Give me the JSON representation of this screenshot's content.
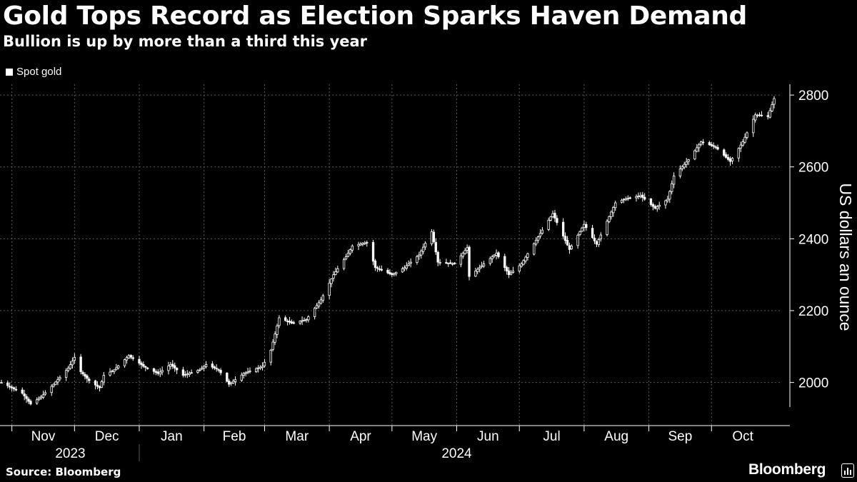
{
  "header": {
    "title": "Gold Tops Record as Election Sparks Haven Demand",
    "subtitle": "Bullion is up by more than a third this year"
  },
  "footer": {
    "source": "Source: Bloomberg",
    "brand": "Bloomberg"
  },
  "colors": {
    "background": "#000000",
    "series": "#ffffff",
    "grid": "#5a5a5a"
  },
  "chart_data": {
    "type": "candlestick",
    "title": "Gold Tops Record as Election Sparks Haven Demand",
    "subtitle": "Bullion is up by more than a third this year",
    "ylabel": "US dollars an ounce",
    "xlabel": "",
    "legend": [
      "Spot gold"
    ],
    "legend_position": "top-left",
    "grid": true,
    "y_axis_position": "right",
    "ylim": [
      1880,
      2830
    ],
    "yticks": [
      2000,
      2200,
      2400,
      2600,
      2800
    ],
    "x_months": [
      "Nov",
      "Dec",
      "Jan",
      "Feb",
      "Mar",
      "Apr",
      "May",
      "Jun",
      "Jul",
      "Aug",
      "Sep",
      "Oct"
    ],
    "x_years": [
      "2023",
      "2024"
    ],
    "x_range": [
      "2023-10-27",
      "2024-10-31"
    ],
    "series": [
      {
        "name": "Spot gold",
        "anchors": [
          [
            "2023-10-27",
            2000
          ],
          [
            "2023-11-01",
            1985
          ],
          [
            "2023-11-06",
            1970
          ],
          [
            "2023-11-10",
            1940
          ],
          [
            "2023-11-15",
            1960
          ],
          [
            "2023-11-21",
            1995
          ],
          [
            "2023-11-28",
            2040
          ],
          [
            "2023-12-01",
            2070
          ],
          [
            "2023-12-04",
            2030
          ],
          [
            "2023-12-08",
            2005
          ],
          [
            "2023-12-13",
            1985
          ],
          [
            "2023-12-15",
            2020
          ],
          [
            "2023-12-20",
            2035
          ],
          [
            "2023-12-27",
            2075
          ],
          [
            "2024-01-03",
            2045
          ],
          [
            "2024-01-10",
            2025
          ],
          [
            "2024-01-16",
            2050
          ],
          [
            "2024-01-22",
            2020
          ],
          [
            "2024-01-30",
            2035
          ],
          [
            "2024-02-02",
            2050
          ],
          [
            "2024-02-08",
            2035
          ],
          [
            "2024-02-13",
            1995
          ],
          [
            "2024-02-20",
            2025
          ],
          [
            "2024-02-29",
            2045
          ],
          [
            "2024-03-04",
            2090
          ],
          [
            "2024-03-08",
            2180
          ],
          [
            "2024-03-14",
            2165
          ],
          [
            "2024-03-21",
            2175
          ],
          [
            "2024-03-28",
            2230
          ],
          [
            "2024-04-03",
            2300
          ],
          [
            "2024-04-09",
            2350
          ],
          [
            "2024-04-12",
            2380
          ],
          [
            "2024-04-19",
            2390
          ],
          [
            "2024-04-23",
            2320
          ],
          [
            "2024-05-01",
            2300
          ],
          [
            "2024-05-07",
            2320
          ],
          [
            "2024-05-14",
            2355
          ],
          [
            "2024-05-20",
            2420
          ],
          [
            "2024-05-23",
            2335
          ],
          [
            "2024-05-31",
            2330
          ],
          [
            "2024-06-06",
            2375
          ],
          [
            "2024-06-07",
            2295
          ],
          [
            "2024-06-14",
            2330
          ],
          [
            "2024-06-20",
            2360
          ],
          [
            "2024-06-26",
            2300
          ],
          [
            "2024-07-02",
            2330
          ],
          [
            "2024-07-11",
            2415
          ],
          [
            "2024-07-17",
            2470
          ],
          [
            "2024-07-25",
            2370
          ],
          [
            "2024-08-01",
            2440
          ],
          [
            "2024-08-07",
            2385
          ],
          [
            "2024-08-16",
            2500
          ],
          [
            "2024-08-20",
            2510
          ],
          [
            "2024-08-28",
            2520
          ],
          [
            "2024-09-04",
            2485
          ],
          [
            "2024-09-10",
            2510
          ],
          [
            "2024-09-13",
            2575
          ],
          [
            "2024-09-20",
            2620
          ],
          [
            "2024-09-26",
            2670
          ],
          [
            "2024-10-03",
            2655
          ],
          [
            "2024-10-10",
            2615
          ],
          [
            "2024-10-16",
            2670
          ],
          [
            "2024-10-22",
            2745
          ],
          [
            "2024-10-28",
            2740
          ],
          [
            "2024-10-31",
            2790
          ]
        ]
      }
    ]
  }
}
